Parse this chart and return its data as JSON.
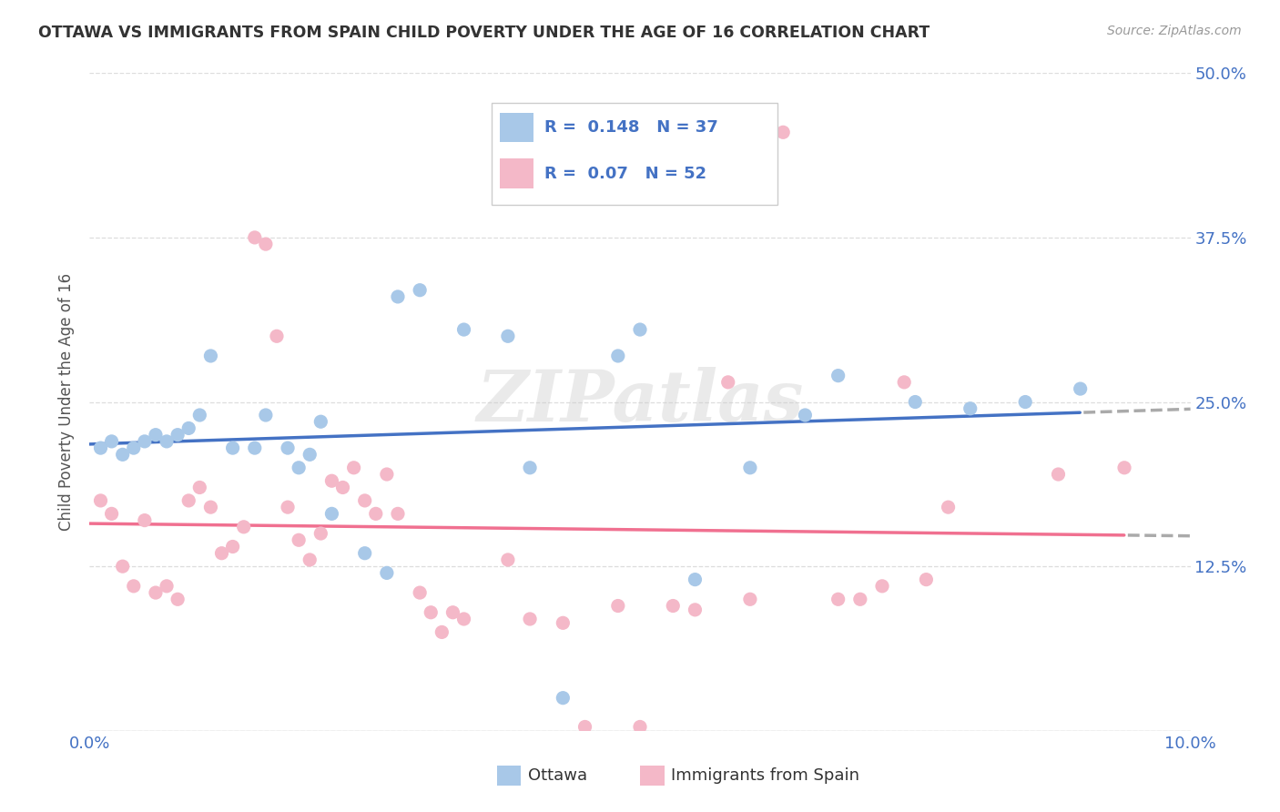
{
  "title": "OTTAWA VS IMMIGRANTS FROM SPAIN CHILD POVERTY UNDER THE AGE OF 16 CORRELATION CHART",
  "source": "Source: ZipAtlas.com",
  "ylabel": "Child Poverty Under the Age of 16",
  "xlim": [
    0.0,
    0.1
  ],
  "ylim": [
    0.0,
    0.5
  ],
  "ytick_labels_right": [
    "",
    "12.5%",
    "25.0%",
    "37.5%",
    "50.0%"
  ],
  "yticks_right": [
    0.0,
    0.125,
    0.25,
    0.375,
    0.5
  ],
  "ottawa_color": "#a8c8e8",
  "spain_color": "#f4b8c8",
  "ottawa_line_color": "#4472c4",
  "spain_line_color": "#f07090",
  "trend_dashed_color": "#aaaaaa",
  "R_ottawa": 0.148,
  "N_ottawa": 37,
  "R_spain": 0.07,
  "N_spain": 52,
  "background_color": "#ffffff",
  "grid_color": "#dddddd",
  "title_color": "#333333",
  "axis_label_color": "#4472c4",
  "legend_label_ottawa": "Ottawa",
  "legend_label_spain": "Immigrants from Spain",
  "ottawa_x": [
    0.001,
    0.002,
    0.003,
    0.004,
    0.005,
    0.006,
    0.007,
    0.008,
    0.009,
    0.01,
    0.011,
    0.013,
    0.015,
    0.016,
    0.018,
    0.019,
    0.02,
    0.021,
    0.022,
    0.025,
    0.027,
    0.028,
    0.03,
    0.034,
    0.038,
    0.04,
    0.043,
    0.048,
    0.05,
    0.055,
    0.06,
    0.065,
    0.068,
    0.075,
    0.08,
    0.085,
    0.09
  ],
  "ottawa_y": [
    0.215,
    0.22,
    0.21,
    0.215,
    0.22,
    0.225,
    0.22,
    0.225,
    0.23,
    0.24,
    0.285,
    0.215,
    0.215,
    0.24,
    0.215,
    0.2,
    0.21,
    0.235,
    0.165,
    0.135,
    0.12,
    0.33,
    0.335,
    0.305,
    0.3,
    0.2,
    0.025,
    0.285,
    0.305,
    0.115,
    0.2,
    0.24,
    0.27,
    0.25,
    0.245,
    0.25,
    0.26
  ],
  "spain_x": [
    0.001,
    0.002,
    0.003,
    0.004,
    0.005,
    0.006,
    0.007,
    0.008,
    0.009,
    0.01,
    0.011,
    0.012,
    0.013,
    0.014,
    0.015,
    0.016,
    0.017,
    0.018,
    0.019,
    0.02,
    0.021,
    0.022,
    0.023,
    0.024,
    0.025,
    0.026,
    0.027,
    0.028,
    0.03,
    0.031,
    0.032,
    0.033,
    0.034,
    0.038,
    0.04,
    0.043,
    0.045,
    0.048,
    0.05,
    0.053,
    0.055,
    0.058,
    0.06,
    0.063,
    0.068,
    0.07,
    0.072,
    0.074,
    0.076,
    0.078,
    0.088,
    0.094
  ],
  "spain_y": [
    0.175,
    0.165,
    0.125,
    0.11,
    0.16,
    0.105,
    0.11,
    0.1,
    0.175,
    0.185,
    0.17,
    0.135,
    0.14,
    0.155,
    0.375,
    0.37,
    0.3,
    0.17,
    0.145,
    0.13,
    0.15,
    0.19,
    0.185,
    0.2,
    0.175,
    0.165,
    0.195,
    0.165,
    0.105,
    0.09,
    0.075,
    0.09,
    0.085,
    0.13,
    0.085,
    0.082,
    0.003,
    0.095,
    0.003,
    0.095,
    0.092,
    0.265,
    0.1,
    0.455,
    0.1,
    0.1,
    0.11,
    0.265,
    0.115,
    0.17,
    0.195,
    0.2
  ]
}
